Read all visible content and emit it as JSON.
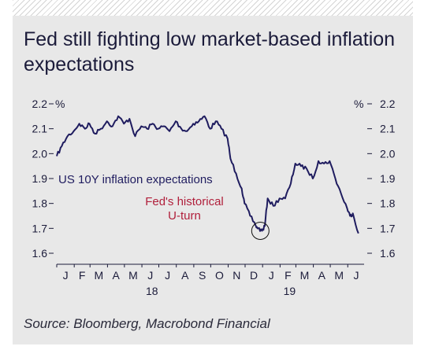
{
  "title": "Fed still fighting low market-based inflation expectations",
  "source": "Source: Bloomberg, Macrobond Financial",
  "colors": {
    "series": "#1f1c5f",
    "annotation": "#b01e3a",
    "panel": "#e8e8e8",
    "text": "#1b1b3a"
  },
  "chart_data": {
    "type": "line",
    "title": "Fed still fighting low market-based inflation expectations",
    "ylabel_left": "%",
    "ylabel_right": "%",
    "ylim": [
      1.6,
      2.2
    ],
    "yticks": [
      "2.2",
      "2.1",
      "2.0",
      "1.9",
      "1.8",
      "1.7",
      "1.6"
    ],
    "xlim": [
      "2018-01-01",
      "2019-06-30"
    ],
    "month_labels": [
      "J",
      "F",
      "M",
      "A",
      "M",
      "J",
      "J",
      "A",
      "S",
      "O",
      "N",
      "D",
      "J",
      "F",
      "M",
      "A",
      "M",
      "J"
    ],
    "year_labels": [
      {
        "label": "18",
        "under_month_index": 5
      },
      {
        "label": "19",
        "under_month_index": 13
      }
    ],
    "grid": false,
    "series": [
      {
        "name": "US 10Y inflation expectations",
        "x": [
          "2018-01-01",
          "2018-01-10",
          "2018-01-20",
          "2018-01-31",
          "2018-02-10",
          "2018-02-20",
          "2018-02-28",
          "2018-03-10",
          "2018-03-20",
          "2018-03-31",
          "2018-04-10",
          "2018-04-20",
          "2018-04-30",
          "2018-05-10",
          "2018-05-20",
          "2018-05-31",
          "2018-06-10",
          "2018-06-20",
          "2018-06-30",
          "2018-07-10",
          "2018-07-20",
          "2018-07-31",
          "2018-08-10",
          "2018-08-20",
          "2018-08-31",
          "2018-09-10",
          "2018-09-20",
          "2018-09-30",
          "2018-10-10",
          "2018-10-20",
          "2018-10-31",
          "2018-11-05",
          "2018-11-15",
          "2018-11-25",
          "2018-11-30",
          "2018-12-10",
          "2018-12-20",
          "2018-12-24",
          "2018-12-31",
          "2019-01-05",
          "2019-01-10",
          "2019-01-20",
          "2019-01-31",
          "2019-02-10",
          "2019-02-20",
          "2019-02-28",
          "2019-03-10",
          "2019-03-20",
          "2019-03-31",
          "2019-04-10",
          "2019-04-20",
          "2019-04-30",
          "2019-05-10",
          "2019-05-20",
          "2019-05-31",
          "2019-06-05",
          "2019-06-10",
          "2019-06-20"
        ],
        "y": [
          1.99,
          2.03,
          2.07,
          2.09,
          2.12,
          2.1,
          2.12,
          2.08,
          2.1,
          2.13,
          2.11,
          2.15,
          2.12,
          2.14,
          2.07,
          2.11,
          2.1,
          2.12,
          2.1,
          2.11,
          2.09,
          2.13,
          2.1,
          2.09,
          2.12,
          2.13,
          2.15,
          2.1,
          2.13,
          2.1,
          2.06,
          1.98,
          1.92,
          1.86,
          1.8,
          1.75,
          1.71,
          1.7,
          1.69,
          1.71,
          1.82,
          1.79,
          1.82,
          1.82,
          1.88,
          1.96,
          1.95,
          1.94,
          1.9,
          1.97,
          1.96,
          1.97,
          1.9,
          1.84,
          1.78,
          1.75,
          1.76,
          1.68
        ]
      }
    ],
    "annotations": [
      {
        "text": "US 10Y inflation expectations"
      },
      {
        "text": "Fed's historical U-turn",
        "lines": [
          "Fed's historical",
          "U-turn"
        ],
        "x": "2018-12-28",
        "y": 1.69
      }
    ]
  }
}
